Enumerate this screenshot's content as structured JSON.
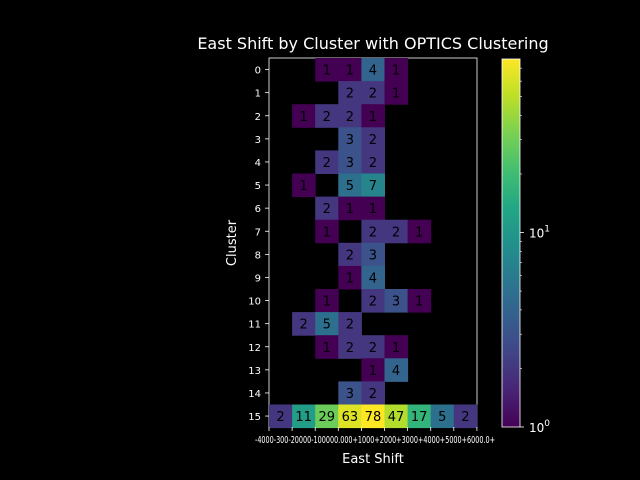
{
  "chart_data": {
    "type": "heatmap",
    "title": "East Shift by Cluster with OPTICS Clustering",
    "xlabel": "East Shift",
    "ylabel": "Cluster",
    "x_tick_labels": [
      "-4000",
      "-3000",
      "-2000",
      "-1000",
      "0.0",
      "1000",
      "2000",
      "3000",
      "4000",
      "5000",
      "6000.0+"
    ],
    "x_tick_labels_rendered": "-4000-300-20000-100000.000+1000+2000+3000+4000+5000+6000.0+",
    "y_categories": [
      "0",
      "1",
      "2",
      "3",
      "4",
      "5",
      "6",
      "7",
      "8",
      "9",
      "10",
      "11",
      "12",
      "13",
      "14",
      "15"
    ],
    "n_columns": 9,
    "cells": [
      [
        0,
        2,
        1
      ],
      [
        0,
        3,
        1
      ],
      [
        0,
        4,
        4
      ],
      [
        0,
        5,
        1
      ],
      [
        1,
        3,
        2
      ],
      [
        1,
        4,
        2
      ],
      [
        1,
        5,
        1
      ],
      [
        2,
        1,
        1
      ],
      [
        2,
        2,
        2
      ],
      [
        2,
        3,
        2
      ],
      [
        2,
        4,
        1
      ],
      [
        3,
        3,
        3
      ],
      [
        3,
        4,
        2
      ],
      [
        4,
        2,
        2
      ],
      [
        4,
        3,
        3
      ],
      [
        4,
        4,
        2
      ],
      [
        5,
        1,
        1
      ],
      [
        5,
        3,
        5
      ],
      [
        5,
        4,
        7
      ],
      [
        6,
        2,
        2
      ],
      [
        6,
        3,
        1
      ],
      [
        6,
        4,
        1
      ],
      [
        7,
        2,
        1
      ],
      [
        7,
        4,
        2
      ],
      [
        7,
        5,
        2
      ],
      [
        7,
        6,
        1
      ],
      [
        8,
        3,
        2
      ],
      [
        8,
        4,
        3
      ],
      [
        9,
        3,
        1
      ],
      [
        9,
        4,
        4
      ],
      [
        10,
        2,
        1
      ],
      [
        10,
        4,
        2
      ],
      [
        10,
        5,
        3
      ],
      [
        10,
        6,
        1
      ],
      [
        11,
        1,
        2
      ],
      [
        11,
        2,
        5
      ],
      [
        11,
        3,
        2
      ],
      [
        12,
        2,
        1
      ],
      [
        12,
        3,
        2
      ],
      [
        12,
        4,
        2
      ],
      [
        12,
        5,
        1
      ],
      [
        13,
        4,
        1
      ],
      [
        13,
        5,
        4
      ],
      [
        14,
        3,
        3
      ],
      [
        14,
        4,
        2
      ],
      [
        15,
        0,
        2
      ],
      [
        15,
        1,
        11
      ],
      [
        15,
        2,
        29
      ],
      [
        15,
        3,
        63
      ],
      [
        15,
        4,
        78
      ],
      [
        15,
        5,
        47
      ],
      [
        15,
        6,
        17
      ],
      [
        15,
        7,
        5
      ],
      [
        15,
        8,
        2
      ]
    ],
    "color_scale": "log",
    "colormap": "viridis",
    "vmin": 1,
    "vmax": 78,
    "colorbar_ticks": [
      {
        "value": 1,
        "base": "10",
        "exp": "0"
      },
      {
        "value": 10,
        "base": "10",
        "exp": "1"
      }
    ],
    "grid": false
  }
}
